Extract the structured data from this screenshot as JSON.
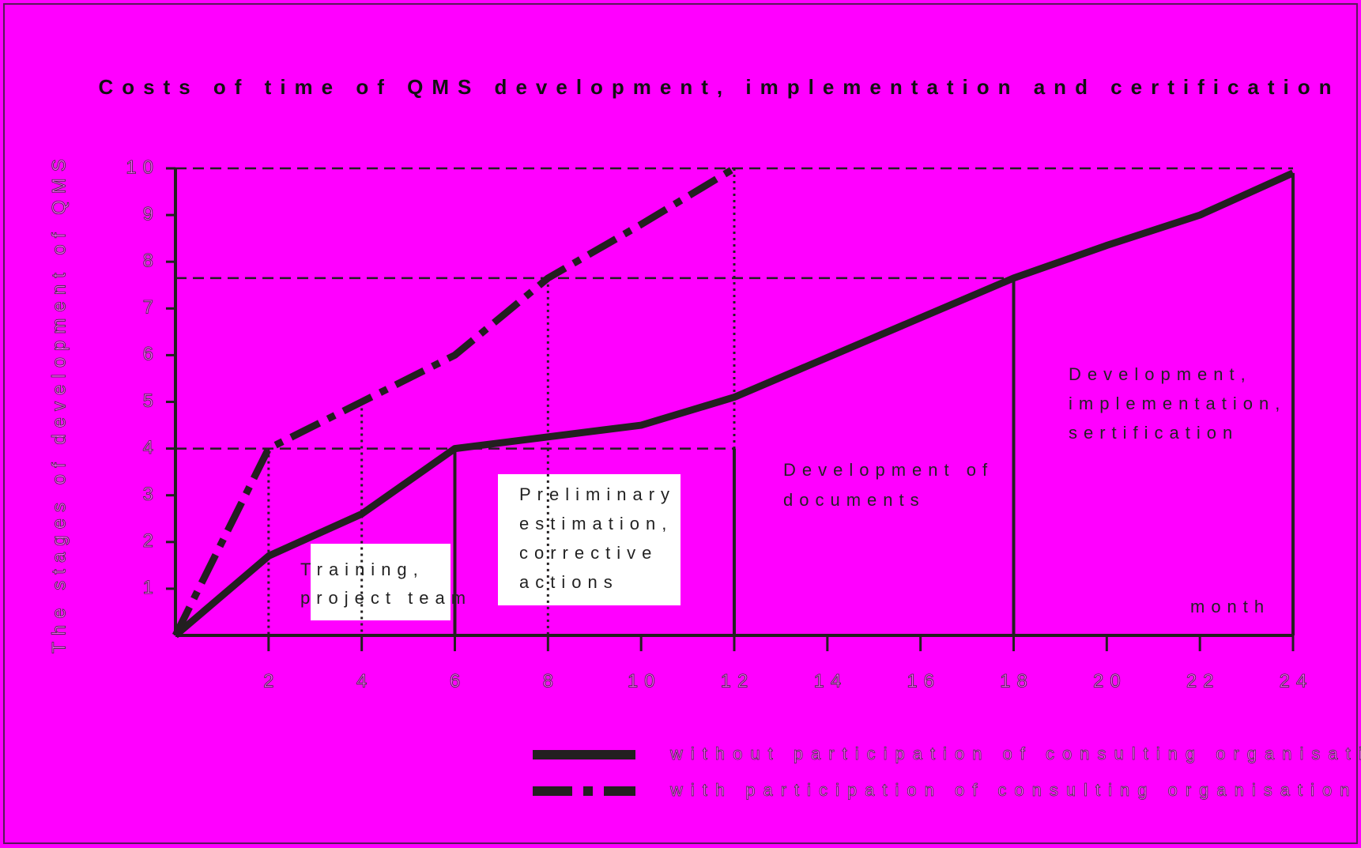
{
  "chart_data": {
    "type": "line",
    "title": "Costs of time of QMS development, implementation and certification",
    "y_label": "The stages of development of QMS",
    "x": [
      0,
      2,
      4,
      6,
      8,
      10,
      12,
      14,
      16,
      18,
      20,
      22,
      24
    ],
    "series": [
      {
        "name": "without participation of consulting organisation",
        "color": "#231f20",
        "style": "solid",
        "values": [
          0,
          1.7,
          2.6,
          4,
          4.25,
          4.5,
          5.1,
          5.95,
          6.8,
          7.65,
          8.35,
          9,
          9.9
        ]
      },
      {
        "name": "with participation of consulting organisation",
        "color": "#231f20",
        "style": "dashdot",
        "values": [
          0,
          4,
          5,
          6,
          7.65,
          8.8,
          10,
          null,
          null,
          null,
          null,
          null,
          null
        ]
      }
    ],
    "xlim": [
      0,
      24
    ],
    "xticks": [
      2,
      4,
      6,
      8,
      10,
      12,
      14,
      16,
      18,
      20,
      22,
      24
    ],
    "ylim": [
      0,
      10
    ],
    "yticks": [
      1,
      2,
      3,
      4,
      5,
      6,
      7,
      8,
      9,
      10
    ],
    "x_label": "month",
    "annotations": [
      {
        "lines": [
          "Training,",
          "project team"
        ]
      },
      {
        "lines": [
          "Preliminary",
          "estimation,",
          "corrective",
          "actions"
        ]
      },
      {
        "lines": [
          "Development of",
          "documents"
        ]
      },
      {
        "lines": [
          "Development,",
          "implementation,",
          "sertification"
        ]
      }
    ]
  }
}
